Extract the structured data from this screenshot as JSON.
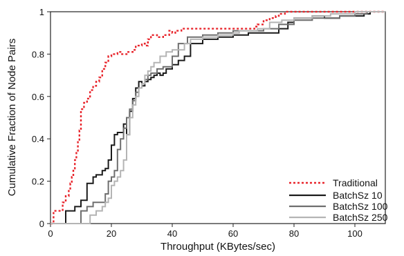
{
  "chart_data": {
    "type": "line",
    "step": true,
    "title": "",
    "xlabel": "Throughput (KBytes/sec)",
    "ylabel": "Cumulative Fraction of Node Pairs",
    "xlim": [
      0,
      110
    ],
    "ylim": [
      0,
      1
    ],
    "xticks": [
      0,
      20,
      40,
      60,
      80,
      100
    ],
    "yticks": [
      0,
      0.2,
      0.4,
      0.6,
      0.8,
      1
    ],
    "xtick_labels": [
      "0",
      "20",
      "40",
      "60",
      "80",
      "100"
    ],
    "ytick_labels": [
      "0",
      "0.2",
      "0.4",
      "0.6",
      "0.8",
      "1"
    ],
    "grid": false,
    "legend_position": "bottom-right",
    "series": [
      {
        "name": "Traditional",
        "color": "#e8242b",
        "dash": "dotted",
        "x": [
          0,
          1,
          1.5,
          4,
          5,
          6,
          6.5,
          7,
          7.5,
          8,
          8.5,
          9,
          9.5,
          10,
          11,
          12,
          13,
          14,
          15,
          16,
          17,
          18,
          19,
          20,
          21,
          22,
          23,
          25,
          27,
          28,
          30,
          31,
          32,
          33,
          35,
          37,
          39,
          40,
          41,
          43,
          48,
          50,
          52,
          66,
          67,
          68,
          70,
          72,
          74,
          75,
          76,
          77,
          78,
          84,
          86,
          110
        ],
        "y": [
          0,
          0.06,
          0.06,
          0.1,
          0.13,
          0.16,
          0.19,
          0.22,
          0.26,
          0.3,
          0.34,
          0.39,
          0.44,
          0.54,
          0.57,
          0.59,
          0.63,
          0.65,
          0.67,
          0.69,
          0.73,
          0.76,
          0.79,
          0.8,
          0.8,
          0.81,
          0.8,
          0.81,
          0.82,
          0.84,
          0.85,
          0.84,
          0.87,
          0.89,
          0.88,
          0.89,
          0.91,
          0.9,
          0.91,
          0.92,
          0.92,
          0.92,
          0.92,
          0.92,
          0.93,
          0.94,
          0.96,
          0.97,
          0.98,
          0.99,
          0.99,
          1.0,
          1.0,
          1.0,
          1.0,
          1.0
        ]
      },
      {
        "name": "BatchSz 10",
        "color": "#1a1a1a",
        "dash": "solid",
        "x": [
          0,
          5,
          8,
          10,
          12,
          14,
          15,
          17,
          18,
          19,
          20,
          21,
          22,
          24,
          25,
          26,
          27,
          28,
          29,
          30,
          31,
          32,
          33,
          34,
          35,
          36,
          37,
          38,
          40,
          42,
          44,
          46,
          50,
          55,
          60,
          65,
          70,
          75,
          78,
          80,
          86,
          90,
          95,
          100,
          103,
          105,
          110
        ],
        "y": [
          0,
          0.06,
          0.08,
          0.11,
          0.19,
          0.22,
          0.23,
          0.25,
          0.26,
          0.3,
          0.37,
          0.42,
          0.43,
          0.47,
          0.42,
          0.53,
          0.59,
          0.64,
          0.67,
          0.65,
          0.67,
          0.68,
          0.69,
          0.7,
          0.71,
          0.7,
          0.71,
          0.73,
          0.75,
          0.77,
          0.79,
          0.85,
          0.87,
          0.88,
          0.89,
          0.9,
          0.9,
          0.92,
          0.95,
          0.97,
          0.98,
          0.97,
          0.98,
          0.98,
          0.99,
          1.0,
          1.0
        ]
      },
      {
        "name": "BatchSz 100",
        "color": "#6e6e6e",
        "dash": "solid",
        "x": [
          0,
          10,
          12,
          14,
          16,
          18,
          19,
          20,
          21,
          22,
          23,
          24,
          25,
          26,
          27,
          28,
          29,
          30,
          31,
          32,
          33,
          35,
          37,
          40,
          42,
          45,
          50,
          55,
          60,
          65,
          70,
          75,
          80,
          86,
          90,
          95,
          100,
          104,
          106,
          110
        ],
        "y": [
          0,
          0.06,
          0.08,
          0.1,
          0.1,
          0.14,
          0.2,
          0.22,
          0.25,
          0.35,
          0.4,
          0.45,
          0.5,
          0.54,
          0.58,
          0.62,
          0.64,
          0.66,
          0.68,
          0.7,
          0.71,
          0.73,
          0.74,
          0.79,
          0.85,
          0.88,
          0.89,
          0.9,
          0.91,
          0.91,
          0.92,
          0.94,
          0.96,
          0.97,
          0.97,
          0.98,
          0.99,
          1.0,
          1.0,
          1.0
        ]
      },
      {
        "name": "BatchSz 250",
        "color": "#b4b4b4",
        "dash": "solid",
        "x": [
          0,
          13,
          15,
          17,
          18,
          19,
          20,
          21,
          22,
          23,
          24,
          25,
          26,
          27,
          28,
          29,
          30,
          31,
          32,
          33,
          34,
          36,
          38,
          40,
          44,
          46,
          50,
          55,
          60,
          62,
          68,
          72,
          76,
          80,
          86,
          92,
          100,
          110
        ],
        "y": [
          0,
          0.04,
          0.06,
          0.08,
          0.1,
          0.12,
          0.18,
          0.2,
          0.22,
          0.25,
          0.3,
          0.42,
          0.5,
          0.56,
          0.6,
          0.64,
          0.66,
          0.7,
          0.72,
          0.74,
          0.76,
          0.79,
          0.81,
          0.82,
          0.85,
          0.87,
          0.88,
          0.89,
          0.9,
          0.91,
          0.92,
          0.95,
          0.96,
          0.97,
          0.98,
          0.99,
          1.0,
          1.0
        ]
      }
    ]
  }
}
